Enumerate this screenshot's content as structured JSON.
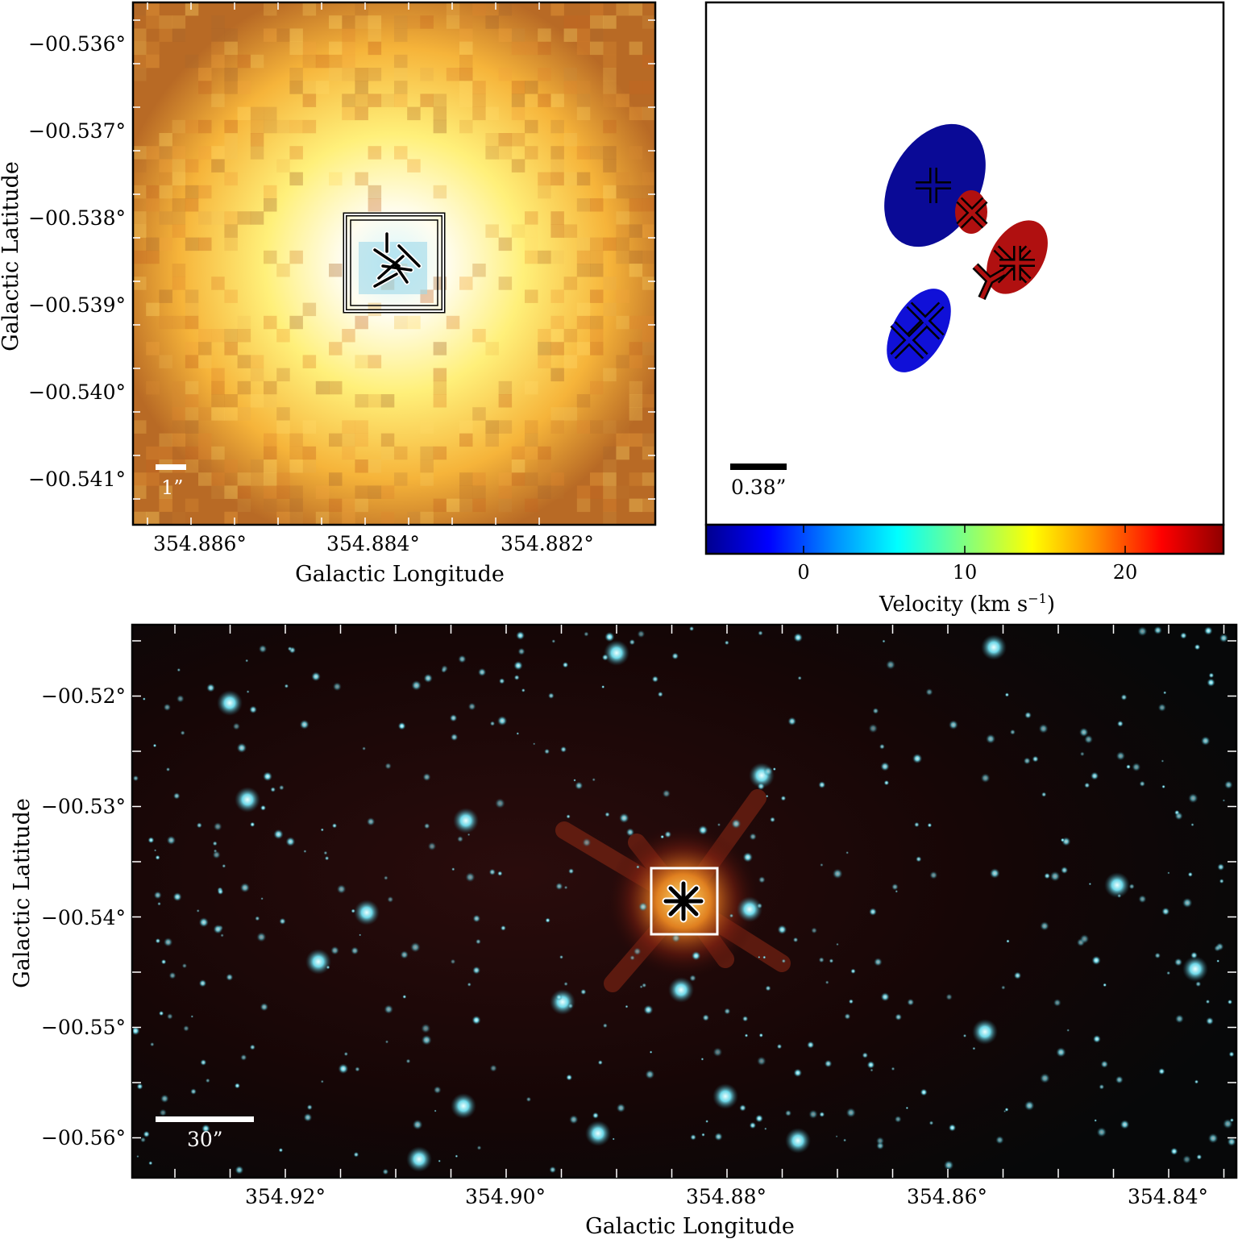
{
  "colors": {
    "blueshift": "#0a0aa8",
    "redshift": "#b01010",
    "scalebar_dark": "#000000",
    "scalebar_light": "#ffffff",
    "box": "#ffffff",
    "colorbar_stops": [
      "#00008f",
      "#0000ff",
      "#0090ff",
      "#00ffff",
      "#80ff80",
      "#ffff00",
      "#ff9000",
      "#ff0000",
      "#8f0000"
    ]
  },
  "panel_top_left": {
    "xlabel": "Galactic Longitude",
    "ylabel": "Galactic Latitude",
    "xticks": [
      "354.886°",
      "354.884°",
      "354.882°"
    ],
    "yticks": [
      "−00.536°",
      "−00.537°",
      "−00.538°",
      "−00.539°",
      "−00.540°",
      "−00.541°"
    ],
    "scalebar_label": "1”"
  },
  "panel_top_right": {
    "scalebar_label": "0.38”",
    "colorbar": {
      "label": "Velocity (km s",
      "label_sup": "−1",
      "label_close": ")",
      "ticks": [
        "0",
        "10",
        "20"
      ],
      "range": [
        -6,
        26
      ]
    }
  },
  "panel_bottom": {
    "xlabel": "Galactic Longitude",
    "ylabel": "Galactic Latitude",
    "xticks": [
      "354.92°",
      "354.90°",
      "354.88°",
      "354.86°",
      "354.84°"
    ],
    "yticks": [
      "−00.52°",
      "−00.53°",
      "−00.54°",
      "−00.55°",
      "−00.56°"
    ],
    "scalebar_label": "30”"
  },
  "chart_data": [
    {
      "type": "scatter",
      "name": "maser spots velocity map",
      "colorbar_range_kms": [
        -6,
        26
      ],
      "series": [
        {
          "name": "blueshifted",
          "velocity_kms": [
            -5,
            -5
          ]
        },
        {
          "name": "redshifted",
          "velocity_kms": [
            24,
            24
          ]
        }
      ]
    }
  ]
}
